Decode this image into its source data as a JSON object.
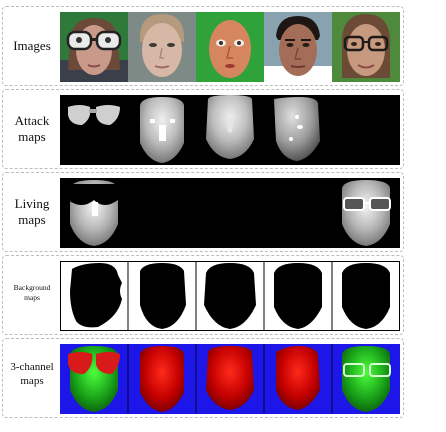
{
  "rows": [
    {
      "label": "Images"
    },
    {
      "label": "Attack maps"
    },
    {
      "label": "Living maps"
    },
    {
      "label": "Background maps"
    },
    {
      "label": "3-channel maps"
    }
  ],
  "subjects": [
    {
      "kind": "glasses-attack",
      "background": "#2f7a3a",
      "skin": "#c99a8a"
    },
    {
      "kind": "print-attack",
      "background": "#7e8a86",
      "skin": "#d7b7a6"
    },
    {
      "kind": "mask-attack",
      "background": "#2fa23a",
      "skin": "#d6865e"
    },
    {
      "kind": "replay-attack",
      "background": "#88a2b0",
      "skin": "#a36d57"
    },
    {
      "kind": "living-glasses",
      "background": "#4f8a3c",
      "skin": "#c79a7f"
    }
  ],
  "colors": {
    "attack_channel": "#d10000",
    "living_channel": "#18b21d",
    "background_channel": "#1d16e8"
  }
}
